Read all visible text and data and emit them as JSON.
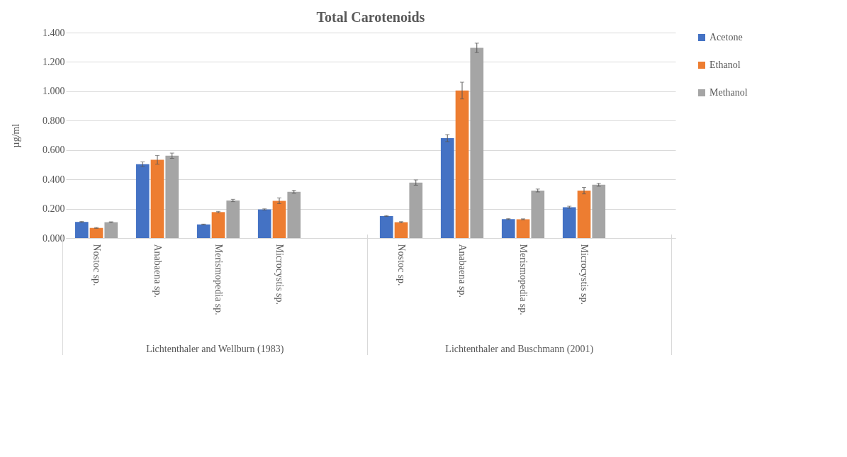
{
  "chart_data": {
    "type": "bar",
    "title": "Total Carotenoids",
    "ylabel": "µg/ml",
    "categories": [
      "Nostoc sp.",
      "Anabaena sp.",
      "Merismopedia sp.",
      "Microcystis sp.",
      null,
      "Nostoc sp.",
      "Anabaena sp.",
      "Merismopedia sp.",
      "Microcystis sp.",
      null
    ],
    "series": [
      {
        "name": "Acetone",
        "color": "#4472c4",
        "values": [
          0.11,
          0.503,
          0.093,
          0.195,
          null,
          0.15,
          0.681,
          0.129,
          0.21,
          null
        ],
        "errors": [
          0.003,
          0.016,
          0.002,
          0.004,
          null,
          0.003,
          0.024,
          0.003,
          0.007,
          null
        ]
      },
      {
        "name": "Ethanol",
        "color": "#ed7d31",
        "values": [
          0.069,
          0.533,
          0.177,
          0.254,
          null,
          0.108,
          1.005,
          0.128,
          0.323,
          null
        ],
        "errors": [
          0.003,
          0.03,
          0.005,
          0.02,
          null,
          0.004,
          0.057,
          0.003,
          0.022,
          null
        ]
      },
      {
        "name": "Methanol",
        "color": "#a5a5a5",
        "values": [
          0.108,
          0.561,
          0.256,
          0.315,
          null,
          0.378,
          1.296,
          0.324,
          0.363,
          null
        ],
        "errors": [
          0.003,
          0.018,
          0.008,
          0.01,
          null,
          0.018,
          0.032,
          0.01,
          0.01,
          null
        ]
      }
    ],
    "ylim": [
      0,
      1.4
    ],
    "yticks": [
      {
        "value": 0,
        "label": "0.000"
      },
      {
        "value": 0.2,
        "label": "0.200"
      },
      {
        "value": 0.4,
        "label": "0.400"
      },
      {
        "value": 0.6,
        "label": "0.600"
      },
      {
        "value": 0.8,
        "label": "0.800"
      },
      {
        "value": 1.0,
        "label": "1.000"
      },
      {
        "value": 1.2,
        "label": "1.200"
      },
      {
        "value": 1.4,
        "label": "1.400"
      }
    ],
    "grid": "y",
    "legend": "right",
    "annotations": [
      "Lichtenthaler and Wellburn (1983)",
      "Lichtenthaler and Buschmann (2001)"
    ]
  }
}
